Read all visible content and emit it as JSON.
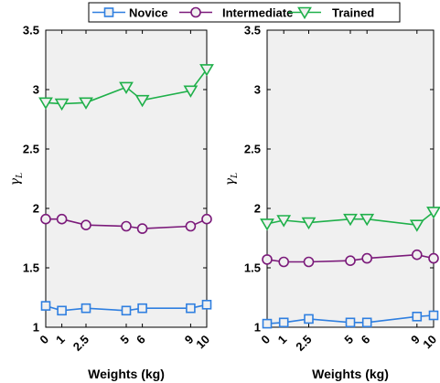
{
  "chart_data": [
    {
      "type": "line",
      "x": [
        0,
        1,
        2.5,
        5,
        6,
        9,
        10
      ],
      "xticks": [
        "0",
        "1",
        "2.5",
        "5",
        "6",
        "9",
        "10"
      ],
      "xlim": [
        0,
        10
      ],
      "ylim": [
        1,
        3.5
      ],
      "yticks": [
        "1",
        "1.5",
        "2",
        "2.5",
        "3",
        "3.5"
      ],
      "xlabel": "Weights (kg)",
      "ylabel": "γL",
      "grid": false,
      "background": "#f0f0f0",
      "series": [
        {
          "name": "Novice",
          "values": [
            1.18,
            1.14,
            1.16,
            1.14,
            1.16,
            1.16,
            1.19
          ]
        },
        {
          "name": "Intermediate",
          "values": [
            1.91,
            1.91,
            1.86,
            1.85,
            1.83,
            1.85,
            1.91
          ]
        },
        {
          "name": "Trained",
          "values": [
            2.89,
            2.88,
            2.89,
            3.02,
            2.91,
            2.99,
            3.17
          ]
        }
      ]
    },
    {
      "type": "line",
      "x": [
        0,
        1,
        2.5,
        5,
        6,
        9,
        10
      ],
      "xticks": [
        "0",
        "1",
        "2.5",
        "5",
        "6",
        "9",
        "10"
      ],
      "xlim": [
        0,
        10
      ],
      "ylim": [
        1,
        3.5
      ],
      "yticks": [
        "1",
        "1.5",
        "2",
        "2.5",
        "3",
        "3.5"
      ],
      "xlabel": "Weights (kg)",
      "ylabel": "γL",
      "grid": false,
      "background": "#f0f0f0",
      "series": [
        {
          "name": "Novice",
          "values": [
            1.03,
            1.04,
            1.07,
            1.04,
            1.04,
            1.09,
            1.1
          ]
        },
        {
          "name": "Intermediate",
          "values": [
            1.57,
            1.55,
            1.55,
            1.56,
            1.58,
            1.61,
            1.58
          ]
        },
        {
          "name": "Trained",
          "values": [
            1.87,
            1.9,
            1.88,
            1.91,
            1.91,
            1.86,
            1.97
          ]
        }
      ]
    }
  ],
  "legend": {
    "position": "top-center",
    "items": [
      {
        "label": "Novice",
        "color": "#2f7fe0",
        "marker": "square"
      },
      {
        "label": "Intermediate",
        "color": "#7b1a7a",
        "marker": "circle"
      },
      {
        "label": "Trained",
        "color": "#1fb04a",
        "marker": "triangle-down"
      }
    ]
  }
}
